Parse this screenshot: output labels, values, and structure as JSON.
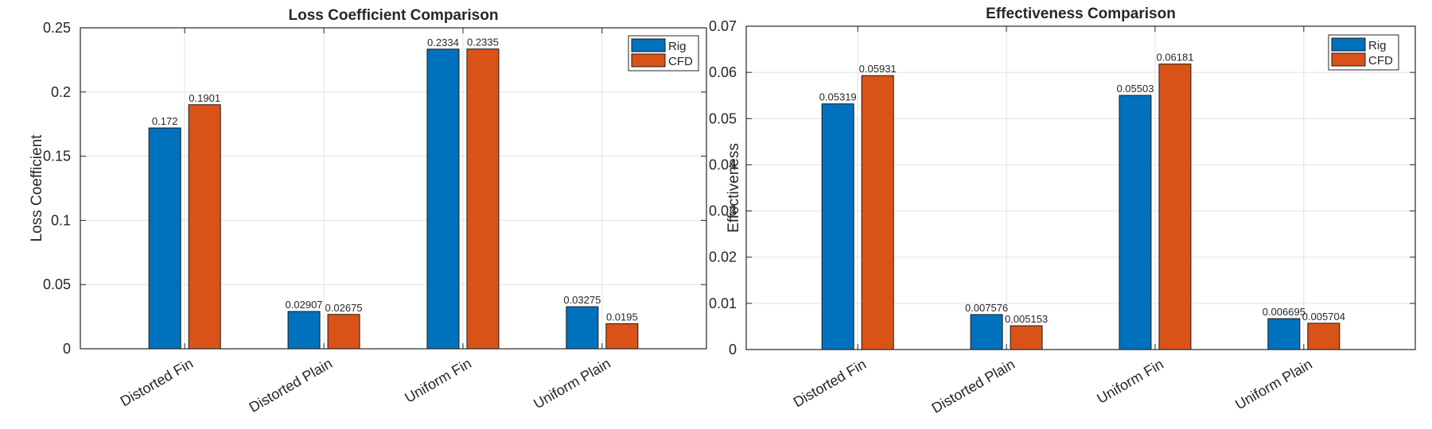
{
  "chart_data": [
    {
      "type": "bar",
      "title": "Loss Coefficient Comparison",
      "xlabel": "",
      "ylabel": "Loss Coefficient",
      "categories": [
        "Distorted Fin",
        "Distorted Plain",
        "Uniform Fin",
        "Uniform Plain"
      ],
      "series": [
        {
          "name": "Rig",
          "values": [
            0.172,
            0.02907,
            0.2334,
            0.03275
          ],
          "labels": [
            "0.172",
            "0.02907",
            "0.2334",
            "0.03275"
          ]
        },
        {
          "name": "CFD",
          "values": [
            0.1901,
            0.02675,
            0.2335,
            0.0195
          ],
          "labels": [
            "0.1901",
            "0.02675",
            "0.2335",
            "0.0195"
          ]
        }
      ],
      "ylim": [
        0,
        0.25
      ],
      "yticks": [
        0,
        0.05,
        0.1,
        0.15,
        0.2,
        0.25
      ],
      "ytick_labels": [
        "0",
        "0.05",
        "0.1",
        "0.15",
        "0.2",
        "0.25"
      ],
      "grid": true,
      "legend_position": "top-right"
    },
    {
      "type": "bar",
      "title": "Effectiveness Comparison",
      "xlabel": "",
      "ylabel": "Effectiveness",
      "categories": [
        "Distorted Fin",
        "Distorted Plain",
        "Uniform Fin",
        "Uniform Plain"
      ],
      "series": [
        {
          "name": "Rig",
          "values": [
            0.05319,
            0.007576,
            0.05503,
            0.006695
          ],
          "labels": [
            "0.05319",
            "0.007576",
            "0.05503",
            "0.006695"
          ]
        },
        {
          "name": "CFD",
          "values": [
            0.05931,
            0.005153,
            0.06181,
            0.005704
          ],
          "labels": [
            "0.05931",
            "0.005153",
            "0.06181",
            "0.005704"
          ]
        }
      ],
      "ylim": [
        0,
        0.07
      ],
      "yticks": [
        0,
        0.01,
        0.02,
        0.03,
        0.04,
        0.05,
        0.06,
        0.07
      ],
      "ytick_labels": [
        "0",
        "0.01",
        "0.02",
        "0.03",
        "0.04",
        "0.05",
        "0.06",
        "0.07"
      ],
      "grid": true,
      "legend_position": "top-right"
    }
  ],
  "colors": {
    "rig": "#0072BD",
    "cfd": "#D95319",
    "grid": "#e2e2e2",
    "axis": "#262626",
    "background": "#ffffff"
  }
}
